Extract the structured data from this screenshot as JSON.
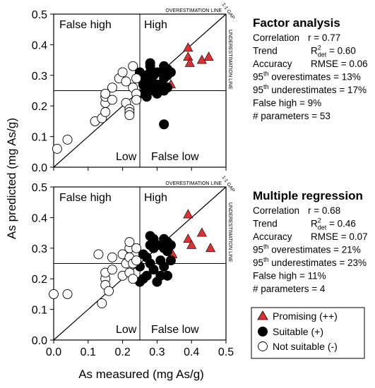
{
  "figure": {
    "ylabel": "As predicted (mg As/g)",
    "xlabel": "As measured (mg As/g)"
  },
  "legend": {
    "items": [
      {
        "label": "Promising (++)",
        "marker": "triangle",
        "color": "#e03030"
      },
      {
        "label": "Suitable (+)",
        "marker": "filled-circle",
        "color": "#000000"
      },
      {
        "label": "Not suitable (-)",
        "marker": "open-circle",
        "color": "#ffffff"
      }
    ]
  },
  "chart_data": [
    {
      "type": "scatter",
      "title": "Factor analysis",
      "xlim": [
        0,
        0.5
      ],
      "ylim": [
        0,
        0.5
      ],
      "xticks": [
        "0.0",
        "0.1",
        "0.2",
        "0.3",
        "0.4",
        "0.5"
      ],
      "yticks": [
        "0.0",
        "0.1",
        "0.2",
        "0.3",
        "0.4",
        "0.5"
      ],
      "show_xticklabels": false,
      "threshold": 0.25,
      "quadrants": {
        "false_high": "False high",
        "high": "High",
        "low": "Low",
        "false_low": "False low"
      },
      "line_labels": {
        "over": "OVERESTIMATION LINE",
        "under": "UNDERESTIMATION LINE",
        "gap": "1:1 GAP"
      },
      "stats": {
        "correlation": {
          "label": "Correlation",
          "value": "r = 0.77"
        },
        "trend": {
          "label": "Trend",
          "sym": "R",
          "sup": "2",
          "sub": "det",
          "value": " = 0.60"
        },
        "accuracy": {
          "label": "Accuracy",
          "value": "RMSE = 0.06"
        },
        "over": {
          "num": "95",
          "sup": "th",
          "text": " overestimates = 13%"
        },
        "under": {
          "num": "95",
          "sup": "th",
          "text": " underestimates = 17%"
        },
        "false_high": "False high = 9%",
        "parameters": "# parameters = 53"
      },
      "series": [
        {
          "marker": "triangle",
          "color": "#e03030",
          "points": [
            [
              0.39,
              0.39
            ],
            [
              0.39,
              0.36
            ],
            [
              0.395,
              0.34
            ],
            [
              0.43,
              0.35
            ],
            [
              0.45,
              0.36
            ],
            [
              0.34,
              0.27
            ]
          ]
        },
        {
          "marker": "filled-circle",
          "color": "#000000",
          "points": [
            [
              0.25,
              0.31
            ],
            [
              0.26,
              0.28
            ],
            [
              0.26,
              0.27
            ],
            [
              0.26,
              0.24
            ],
            [
              0.27,
              0.3
            ],
            [
              0.27,
              0.25
            ],
            [
              0.27,
              0.23
            ],
            [
              0.28,
              0.33
            ],
            [
              0.28,
              0.34
            ],
            [
              0.28,
              0.31
            ],
            [
              0.28,
              0.28
            ],
            [
              0.28,
              0.26
            ],
            [
              0.29,
              0.3
            ],
            [
              0.29,
              0.27
            ],
            [
              0.29,
              0.25
            ],
            [
              0.3,
              0.31
            ],
            [
              0.3,
              0.27
            ],
            [
              0.3,
              0.24
            ],
            [
              0.31,
              0.31
            ],
            [
              0.31,
              0.27
            ],
            [
              0.32,
              0.33
            ],
            [
              0.32,
              0.29
            ],
            [
              0.32,
              0.25
            ],
            [
              0.33,
              0.32
            ],
            [
              0.33,
              0.3
            ],
            [
              0.33,
              0.26
            ],
            [
              0.34,
              0.31
            ],
            [
              0.32,
              0.14
            ]
          ]
        },
        {
          "marker": "open-circle",
          "color": "#ffffff",
          "points": [
            [
              0.01,
              0.06
            ],
            [
              0.04,
              0.09
            ],
            [
              0.12,
              0.15
            ],
            [
              0.14,
              0.16
            ],
            [
              0.15,
              0.18
            ],
            [
              0.15,
              0.21
            ],
            [
              0.15,
              0.23
            ],
            [
              0.15,
              0.24
            ],
            [
              0.17,
              0.22
            ],
            [
              0.17,
              0.26
            ],
            [
              0.19,
              0.29
            ],
            [
              0.2,
              0.31
            ],
            [
              0.21,
              0.28
            ],
            [
              0.21,
              0.21
            ],
            [
              0.22,
              0.19
            ],
            [
              0.22,
              0.18
            ],
            [
              0.22,
              0.17
            ],
            [
              0.23,
              0.33
            ],
            [
              0.23,
              0.26
            ],
            [
              0.24,
              0.29
            ],
            [
              0.24,
              0.24
            ],
            [
              0.24,
              0.22
            ]
          ]
        }
      ]
    },
    {
      "type": "scatter",
      "title": "Multiple regression",
      "xlim": [
        0,
        0.5
      ],
      "ylim": [
        0,
        0.5
      ],
      "xticks": [
        "0.0",
        "0.1",
        "0.2",
        "0.3",
        "0.4",
        "0.5"
      ],
      "yticks": [
        "0.0",
        "0.1",
        "0.2",
        "0.3",
        "0.4",
        "0.5"
      ],
      "show_xticklabels": true,
      "threshold": 0.25,
      "quadrants": {
        "false_high": "False high",
        "high": "High",
        "low": "Low",
        "false_low": "False low"
      },
      "line_labels": {
        "over": "OVERESTIMATION LINE",
        "under": "UNDERESTIMATION LINE",
        "gap": "1:1 GAP"
      },
      "stats": {
        "correlation": {
          "label": "Correlation",
          "value": "r = 0.68"
        },
        "trend": {
          "label": "Trend",
          "sym": "R",
          "sup": "2",
          "sub": "det",
          "value": " = 0.46"
        },
        "accuracy": {
          "label": "Accuracy",
          "value": "RMSE = 0.07"
        },
        "over": {
          "num": "95",
          "sup": "th",
          "text": " overestimates = 21%"
        },
        "under": {
          "num": "95",
          "sup": "th",
          "text": " underestimates = 23%"
        },
        "false_high": "False high = 11%",
        "parameters": "# parameters = 4"
      },
      "series": [
        {
          "marker": "triangle",
          "color": "#e03030",
          "points": [
            [
              0.39,
              0.41
            ],
            [
              0.39,
              0.33
            ],
            [
              0.4,
              0.31
            ],
            [
              0.43,
              0.35
            ],
            [
              0.455,
              0.3
            ],
            [
              0.345,
              0.28
            ]
          ]
        },
        {
          "marker": "filled-circle",
          "color": "#000000",
          "points": [
            [
              0.25,
              0.19
            ],
            [
              0.25,
              0.24
            ],
            [
              0.26,
              0.2
            ],
            [
              0.26,
              0.28
            ],
            [
              0.27,
              0.21
            ],
            [
              0.27,
              0.27
            ],
            [
              0.28,
              0.34
            ],
            [
              0.28,
              0.31
            ],
            [
              0.28,
              0.25
            ],
            [
              0.29,
              0.33
            ],
            [
              0.29,
              0.3
            ],
            [
              0.29,
              0.23
            ],
            [
              0.3,
              0.31
            ],
            [
              0.3,
              0.19
            ],
            [
              0.31,
              0.26
            ],
            [
              0.31,
              0.21
            ],
            [
              0.32,
              0.33
            ],
            [
              0.32,
              0.3
            ],
            [
              0.32,
              0.24
            ],
            [
              0.33,
              0.32
            ],
            [
              0.33,
              0.29
            ],
            [
              0.33,
              0.21
            ],
            [
              0.34,
              0.31
            ],
            [
              0.34,
              0.26
            ]
          ]
        },
        {
          "marker": "open-circle",
          "color": "#ffffff",
          "points": [
            [
              0.0,
              0.15
            ],
            [
              0.04,
              0.15
            ],
            [
              0.13,
              0.28
            ],
            [
              0.14,
              0.12
            ],
            [
              0.15,
              0.2
            ],
            [
              0.15,
              0.18
            ],
            [
              0.15,
              0.22
            ],
            [
              0.16,
              0.16
            ],
            [
              0.17,
              0.27
            ],
            [
              0.17,
              0.23
            ],
            [
              0.2,
              0.21
            ],
            [
              0.2,
              0.28
            ],
            [
              0.21,
              0.25
            ],
            [
              0.22,
              0.22
            ],
            [
              0.22,
              0.3
            ],
            [
              0.22,
              0.32
            ],
            [
              0.22,
              0.27
            ],
            [
              0.23,
              0.2
            ],
            [
              0.23,
              0.25
            ],
            [
              0.24,
              0.3
            ],
            [
              0.24,
              0.26
            ]
          ]
        }
      ]
    }
  ]
}
